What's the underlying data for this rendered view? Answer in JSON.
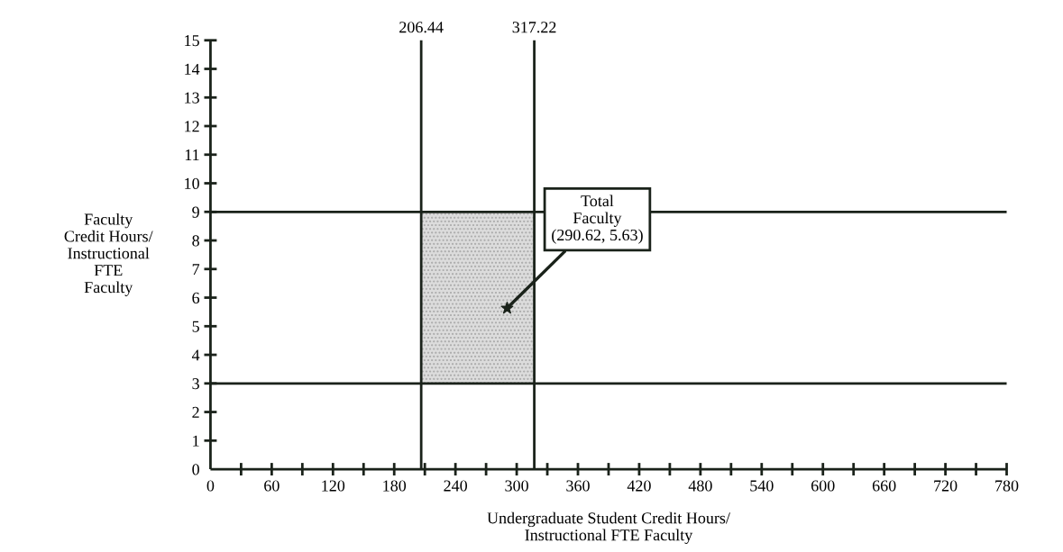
{
  "chart_data": {
    "type": "scatter",
    "xlabel": "Undergraduate Student Credit Hours/\nInstructional FTE Faculty",
    "ylabel": "Faculty\nCredit Hours/\nInstructional\nFTE\nFaculty",
    "series": [
      {
        "x": [
          290.62
        ],
        "values": [
          5.63
        ],
        "color": "#1a221a"
      }
    ],
    "marker": "star",
    "xlim": [
      0,
      780
    ],
    "xticks": [
      0,
      {
        "value": 30,
        "label": null
      },
      60,
      {
        "value": 90,
        "label": null
      },
      120,
      {
        "value": 150,
        "label": null
      },
      180,
      {
        "value": 210,
        "label": null
      },
      240,
      {
        "value": 270,
        "label": null
      },
      300,
      {
        "value": 330,
        "label": null
      },
      360,
      {
        "value": 390,
        "label": null
      },
      420,
      {
        "value": 450,
        "label": null
      },
      480,
      {
        "value": 510,
        "label": null
      },
      540,
      {
        "value": 570,
        "label": null
      },
      600,
      {
        "value": 630,
        "label": null
      },
      660,
      {
        "value": 690,
        "label": null
      },
      720,
      {
        "value": 750,
        "label": null
      },
      780
    ],
    "ylim": [
      0,
      15
    ],
    "yticks": [
      0,
      1,
      2,
      3,
      4,
      5,
      6,
      7,
      8,
      9,
      10,
      11,
      12,
      13,
      14,
      15
    ],
    "ref_lines": [
      {
        "axis": "x",
        "value": 206.44,
        "label": "206.44",
        "color": "#1a221a"
      },
      {
        "axis": "x",
        "value": 317.22,
        "label": "317.22",
        "color": "#1a221a"
      },
      {
        "axis": "y",
        "value": 9,
        "color": "#1a221a"
      },
      {
        "axis": "y",
        "value": 3,
        "color": "#1a221a"
      }
    ],
    "bands": [
      {
        "axis": "x",
        "from": 206.44,
        "to": 317.22,
        "color": "#dcdcdc"
      }
    ],
    "annotations": [
      {
        "text": "Total\nFaculty\n(290.62, 5.63)",
        "x": 290.62,
        "y": 5.63
      }
    ],
    "grid": false,
    "legend": false
  }
}
